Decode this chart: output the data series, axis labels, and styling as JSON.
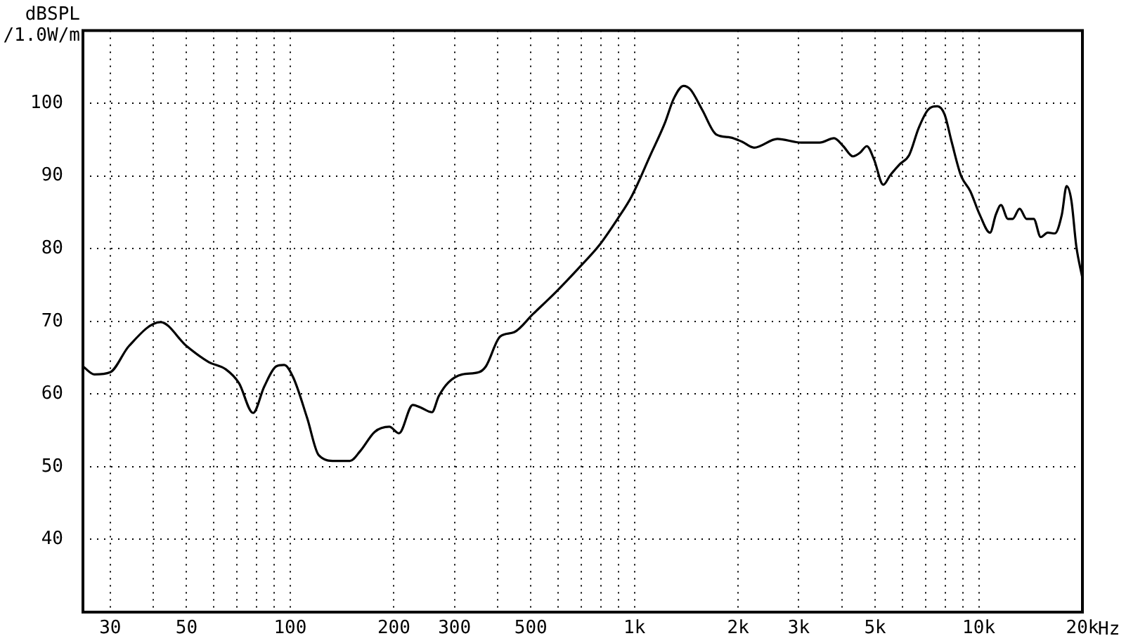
{
  "chart_data": {
    "type": "line",
    "xlabel": "Hz",
    "ylabel": "dBSPL\n/1.0W/m",
    "log": "x",
    "grid": true,
    "legend": false,
    "marker": "none",
    "line_style": "solid",
    "xlim": [
      25,
      20000
    ],
    "ylim": [
      30,
      110
    ],
    "xticks": [
      30,
      {
        "value": 40,
        "label": null
      },
      50,
      {
        "value": 60,
        "label": null
      },
      {
        "value": 70,
        "label": null
      },
      {
        "value": 80,
        "label": null
      },
      {
        "value": 90,
        "label": null
      },
      100,
      200,
      300,
      {
        "value": 400,
        "label": null
      },
      500,
      {
        "value": 600,
        "label": null
      },
      {
        "value": 700,
        "label": null
      },
      {
        "value": 800,
        "label": null
      },
      {
        "value": 900,
        "label": null
      },
      {
        "value": 1000,
        "label": "1k"
      },
      {
        "value": 2000,
        "label": "2k"
      },
      {
        "value": 3000,
        "label": "3k"
      },
      {
        "value": 4000,
        "label": null
      },
      {
        "value": 5000,
        "label": "5k"
      },
      {
        "value": 6000,
        "label": null
      },
      {
        "value": 7000,
        "label": null
      },
      {
        "value": 8000,
        "label": null
      },
      {
        "value": 9000,
        "label": null
      },
      {
        "value": 10000,
        "label": "10k"
      },
      {
        "value": 20000,
        "label": "20k"
      }
    ],
    "yticks": [
      40,
      50,
      60,
      70,
      80,
      90,
      100
    ],
    "series": [
      {
        "color": "#000000",
        "x": [
          25,
          27,
          30,
          34,
          42,
          50,
          58,
          65,
          71,
          78,
          84,
          91,
          96,
          102,
          112,
          121,
          135,
          149,
          160,
          176,
          194,
          207,
          227,
          238,
          258,
          270,
          288,
          316,
          353,
          370,
          407,
          447,
          507,
          593,
          694,
          788,
          893,
          981,
          1113,
          1223,
          1302,
          1388,
          1454,
          1573,
          1728,
          1899,
          2055,
          2225,
          2600,
          3050,
          3450,
          3800,
          4040,
          4310,
          4520,
          4730,
          4960,
          5280,
          5530,
          5890,
          6280,
          6690,
          7120,
          7580,
          7950,
          8340,
          8870,
          9450,
          10060,
          10780,
          11210,
          11600,
          12150,
          12540,
          13140,
          13770,
          14440,
          15130,
          15860,
          16630,
          17430,
          17990,
          18580,
          19190,
          19990
        ],
        "values": [
          63.8,
          62.7,
          63.0,
          66.6,
          69.9,
          66.6,
          64.4,
          63.4,
          61.5,
          57.4,
          61.0,
          63.8,
          64.0,
          62.3,
          56.7,
          51.6,
          50.8,
          50.8,
          52.2,
          54.8,
          55.5,
          54.6,
          58.5,
          58.2,
          57.5,
          59.7,
          61.6,
          62.7,
          63.0,
          63.8,
          67.9,
          68.5,
          71.0,
          74.1,
          77.5,
          80.4,
          84.1,
          87.2,
          92.9,
          97.2,
          100.7,
          102.4,
          101.9,
          99.1,
          95.7,
          95.3,
          94.7,
          93.9,
          95.1,
          94.6,
          94.6,
          95.2,
          94.1,
          92.7,
          93.2,
          94.1,
          92.3,
          88.8,
          90.1,
          91.6,
          92.9,
          96.6,
          99.1,
          99.6,
          98.5,
          94.7,
          90.1,
          87.9,
          84.7,
          82.2,
          84.7,
          86.0,
          84.1,
          84.1,
          85.5,
          84.1,
          84.1,
          81.6,
          82.2,
          82.1,
          84.7,
          88.6,
          86.6,
          80.4,
          76.0
        ]
      }
    ]
  }
}
